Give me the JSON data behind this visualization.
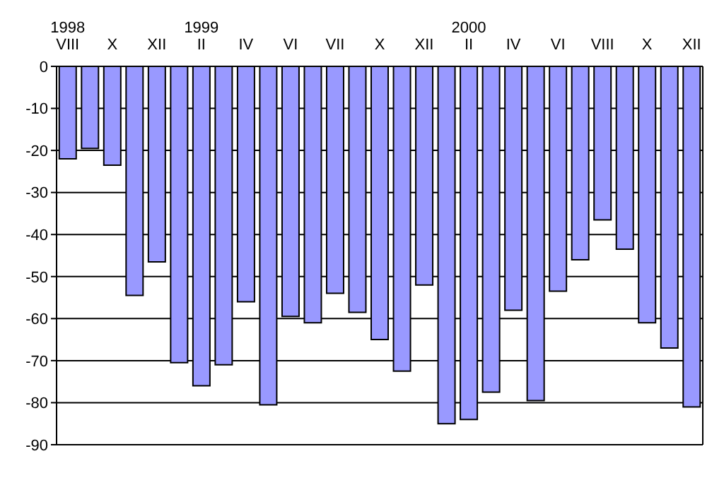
{
  "chart_data": {
    "type": "bar",
    "categories": [
      "1998\nVIII",
      null,
      "X",
      null,
      "XII",
      null,
      "1999\nII",
      null,
      "IV",
      null,
      "VI",
      null,
      "VII",
      null,
      "X",
      null,
      "XII",
      null,
      "2000\nII",
      null,
      "IV",
      null,
      "VI",
      null,
      "VIII",
      null,
      "X",
      null,
      "XII"
    ],
    "values": [
      -22,
      -19.5,
      -23.5,
      -54.5,
      -46.5,
      -70.5,
      -76,
      -71,
      -56,
      -80.5,
      -59.5,
      -61,
      -54,
      -58.5,
      -65,
      -72.5,
      -52,
      -85,
      -84,
      -77.5,
      -58,
      -79.5,
      -53.5,
      -46,
      -36.5,
      -43.5,
      -61,
      -67,
      -81
    ],
    "color": "#9999ff",
    "ylim": [
      -90,
      0
    ],
    "yticks": [
      -90,
      -80,
      -70,
      -60,
      -50,
      -40,
      -30,
      -20,
      -10,
      0
    ],
    "grid": "y"
  }
}
